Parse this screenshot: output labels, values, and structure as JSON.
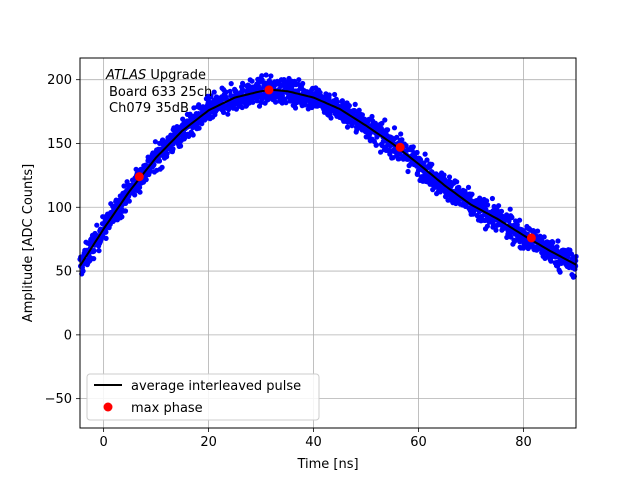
{
  "chart_data": {
    "type": "scatter",
    "title": "",
    "xlabel": "Time [ns]",
    "ylabel": "Amplitude [ADC Counts]",
    "xlim": [
      -4.5,
      90
    ],
    "ylim": [
      -73,
      217
    ],
    "x_ticks": [
      0,
      20,
      40,
      60,
      80
    ],
    "y_ticks": [
      -50,
      0,
      50,
      100,
      150,
      200
    ],
    "grid": true,
    "legend_position": "lower-left",
    "annotation": {
      "experiment": "ATLAS",
      "line1_rest": " Upgrade",
      "line2": "Board 633 25ch",
      "line3": "Ch079 35dB"
    },
    "series": [
      {
        "name": "",
        "kind": "scatter",
        "color": "#0000ff",
        "noise_amplitude": 5,
        "x_range": [
          -4.5,
          90
        ],
        "note_generation": "dense scatter of samples around the average pulse"
      },
      {
        "name": "average interleaved pulse",
        "kind": "line",
        "color": "#000000",
        "x": [
          -4.5,
          0,
          5,
          10,
          15,
          20,
          25,
          30,
          32,
          35,
          40,
          45,
          50,
          55,
          60,
          65,
          70,
          75,
          80,
          85,
          90
        ],
        "y": [
          54,
          83,
          113,
          139,
          160,
          176,
          186,
          191,
          192,
          191,
          186,
          177,
          164,
          150,
          134,
          117,
          102,
          91,
          78,
          66,
          55
        ]
      },
      {
        "name": "max phase",
        "kind": "scatter",
        "color": "#ff0000",
        "x": [
          6.8,
          31.5,
          56.5,
          81.5
        ],
        "y": [
          124,
          192,
          147,
          76
        ]
      }
    ]
  }
}
